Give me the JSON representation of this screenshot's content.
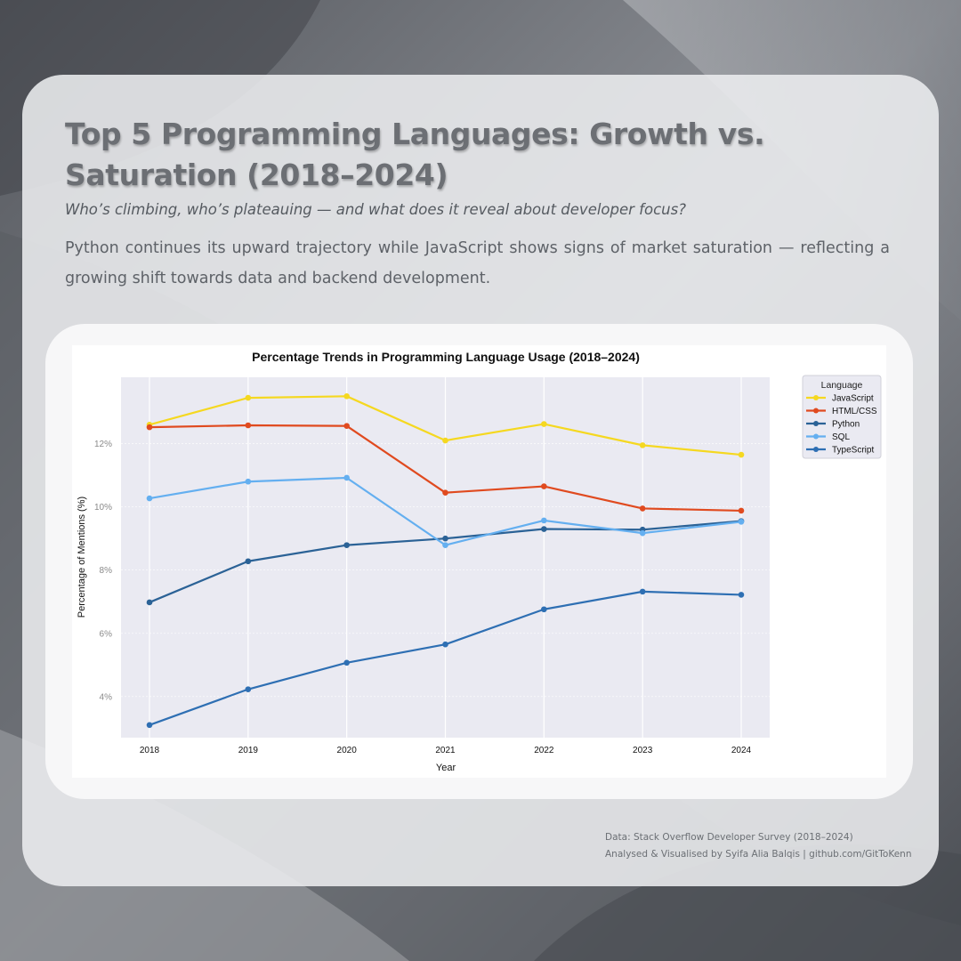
{
  "page": {
    "title": "Top 5 Programming Languages: Growth vs. Saturation (2018–2024)",
    "subtitle": "Who’s climbing, who’s plateauing — and what does it reveal about developer focus?",
    "description": "Python continues its upward trajectory while JavaScript shows signs of market saturation — reflecting a growing shift towards data and backend development.",
    "source": "Data: Stack Overflow Developer Survey (2018–2024)",
    "credit": "Analysed & Visualised by Syifa Alia Balqis | github.com/GitToKenn"
  },
  "colors": {
    "background": "#6b6f76",
    "card": "#ecedef",
    "plot_bg": "#eaeaf2"
  },
  "chart_data": {
    "type": "line",
    "title": "Percentage Trends in Programming Language Usage (2018–2024)",
    "xlabel": "Year",
    "ylabel": "Percentage of Mentions (%)",
    "categories": [
      "2018",
      "2019",
      "2020",
      "2021",
      "2022",
      "2023",
      "2024"
    ],
    "ylim": [
      2.7,
      14.1
    ],
    "yticks": [
      4,
      6,
      8,
      10,
      12
    ],
    "ytick_labels": [
      "4%",
      "6%",
      "8%",
      "10%",
      "12%"
    ],
    "legend_title": "Language",
    "legend_position": "top-right, outside plot",
    "grid": true,
    "series": [
      {
        "name": "JavaScript",
        "color": "#f5d820",
        "values": [
          12.6,
          13.45,
          13.5,
          12.1,
          12.62,
          11.95,
          11.65
        ]
      },
      {
        "name": "HTML/CSS",
        "color": "#e04a1f",
        "values": [
          12.52,
          12.58,
          12.56,
          10.45,
          10.65,
          9.95,
          9.88
        ]
      },
      {
        "name": "Python",
        "color": "#2b6296",
        "values": [
          6.98,
          8.28,
          8.79,
          9.0,
          9.3,
          9.28,
          9.55
        ]
      },
      {
        "name": "SQL",
        "color": "#64aff0",
        "values": [
          10.27,
          10.8,
          10.92,
          8.79,
          9.57,
          9.17,
          9.53
        ]
      },
      {
        "name": "TypeScript",
        "color": "#2e6fb3",
        "values": [
          3.1,
          4.23,
          5.07,
          5.65,
          6.76,
          7.32,
          7.22
        ]
      }
    ]
  }
}
